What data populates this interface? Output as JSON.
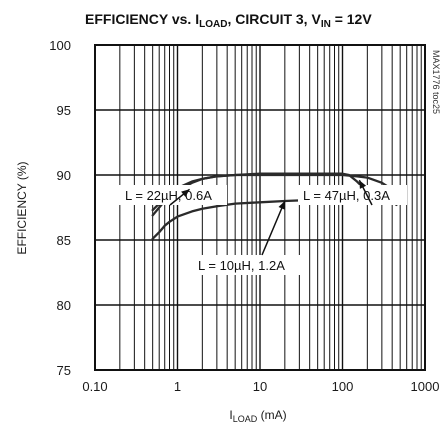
{
  "chart_data": {
    "type": "line",
    "title": {
      "main": "EFFICIENCY vs. I",
      "main_sub": "LOAD",
      "mid": ", CIRCUIT 3, V",
      "mid_sub": "IN",
      "end": " = 12V"
    },
    "figure_code": "MAX1776 toc25",
    "xlabel": {
      "main": "I",
      "sub": "LOAD",
      "unit": " (mA)"
    },
    "ylabel": "EFFICIENCY (%)",
    "x_scale": "log",
    "xlim": [
      0.1,
      1000
    ],
    "ylim": [
      75,
      100
    ],
    "x_ticks": [
      0.1,
      1,
      10,
      100,
      1000
    ],
    "x_tick_labels": [
      "0.10",
      "1",
      "10",
      "100",
      "1000"
    ],
    "y_ticks": [
      75,
      80,
      85,
      90,
      95,
      100
    ],
    "y_tick_labels": [
      "75",
      "80",
      "85",
      "90",
      "95",
      "100"
    ],
    "grid": true,
    "series": [
      {
        "name": "L = 22µH, 0.6A",
        "x": [
          0.5,
          0.6,
          0.7,
          0.8,
          1,
          1.5,
          2,
          3,
          5,
          10,
          20,
          50,
          100,
          150,
          200,
          300,
          400
        ],
        "y": [
          87.3,
          87.8,
          88.3,
          88.6,
          89.0,
          89.5,
          89.7,
          89.9,
          90.0,
          90.0,
          90.0,
          90.0,
          90.0,
          89.9,
          89.8,
          89.4,
          88.9
        ]
      },
      {
        "name": "L = 47µH, 0.3A",
        "x": [
          0.5,
          0.6,
          0.7,
          0.8,
          1,
          1.5,
          2,
          3,
          5,
          10,
          20,
          50,
          100,
          120,
          150,
          180,
          200
        ],
        "y": [
          86.9,
          87.5,
          88.0,
          88.4,
          88.8,
          89.4,
          89.7,
          89.9,
          90.0,
          90.1,
          90.1,
          90.1,
          90.1,
          90.0,
          89.5,
          89.0,
          88.7
        ]
      },
      {
        "name": "L = 10µH, 1.2A",
        "x": [
          0.5,
          0.6,
          0.7,
          0.8,
          1,
          1.5,
          2,
          3,
          5,
          10,
          20,
          50,
          100,
          200,
          300,
          400,
          450
        ],
        "y": [
          85.1,
          85.6,
          86.1,
          86.4,
          86.8,
          87.2,
          87.4,
          87.6,
          87.8,
          87.9,
          88.0,
          88.1,
          88.2,
          88.3,
          88.4,
          88.1,
          87.7
        ]
      }
    ],
    "annotations": [
      {
        "text": "L = 22µH, 0.6A",
        "arrow_to": [
          1.4,
          88.9
        ]
      },
      {
        "text": "L = 47µH, 0.3A",
        "arrow_to": [
          160,
          89.6
        ]
      },
      {
        "text": "L = 10µH, 1.2A",
        "arrow_to": [
          20,
          88.0
        ]
      }
    ]
  }
}
